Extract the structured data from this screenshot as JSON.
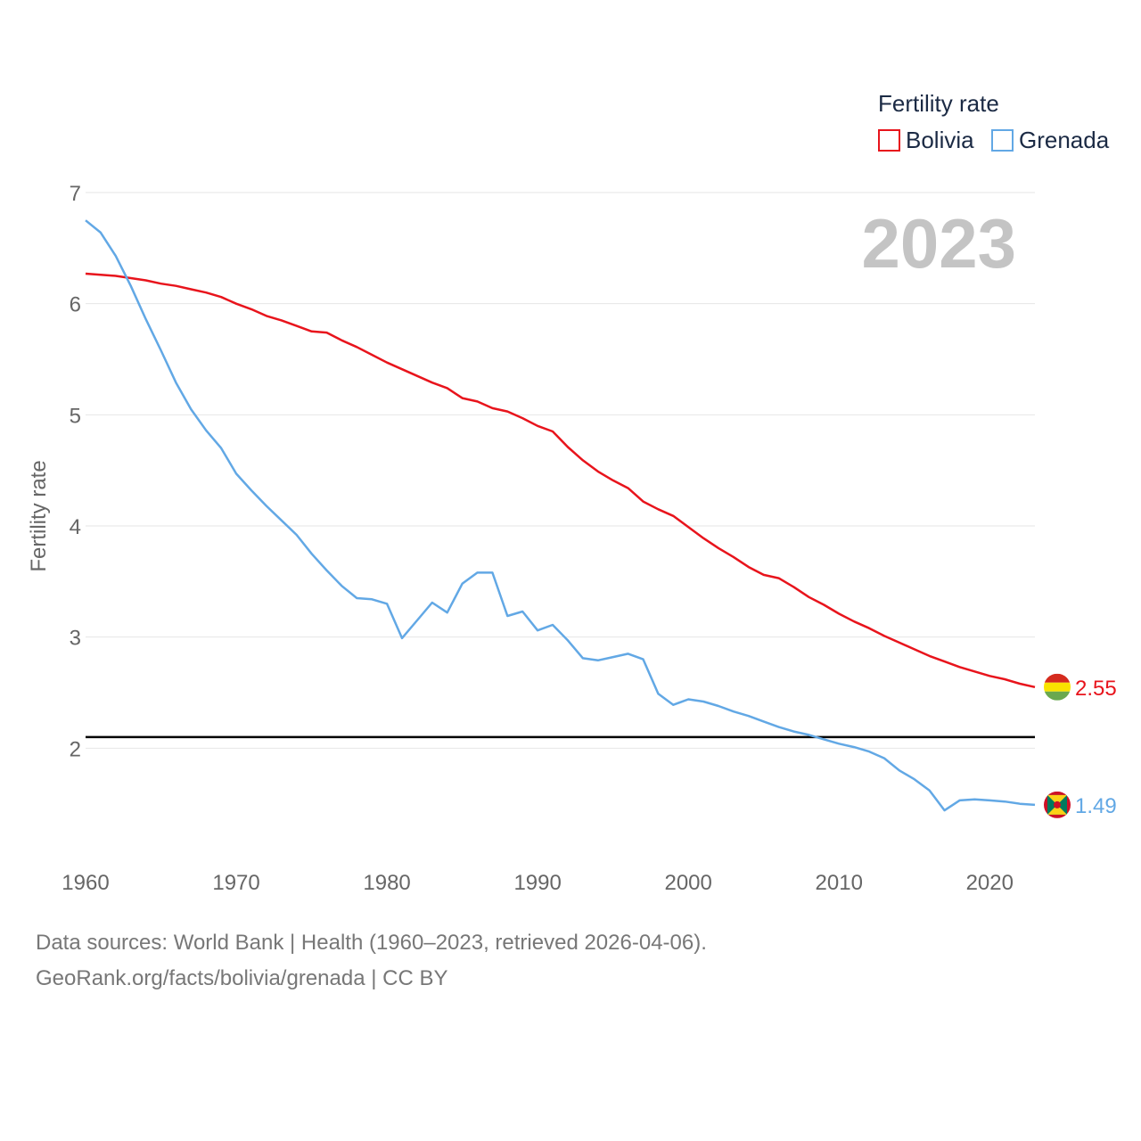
{
  "chart_data": {
    "type": "line",
    "legend_title": "Fertility rate",
    "ylabel": "Fertility rate",
    "year_label": "2023",
    "xlim": [
      1960,
      2023
    ],
    "ylim": [
      1.0,
      7.0
    ],
    "x_ticks": [
      1960,
      1970,
      1980,
      1990,
      2000,
      2010,
      2020
    ],
    "y_ticks": [
      2,
      3,
      4,
      5,
      6,
      7
    ],
    "grid": true,
    "legend_position": "top-right",
    "reference_line": {
      "y": 2.1,
      "color": "#000000"
    },
    "x": [
      1960,
      1961,
      1962,
      1963,
      1964,
      1965,
      1966,
      1967,
      1968,
      1969,
      1970,
      1971,
      1972,
      1973,
      1974,
      1975,
      1976,
      1977,
      1978,
      1979,
      1980,
      1981,
      1982,
      1983,
      1984,
      1985,
      1986,
      1987,
      1988,
      1989,
      1990,
      1991,
      1992,
      1993,
      1994,
      1995,
      1996,
      1997,
      1998,
      1999,
      2000,
      2001,
      2002,
      2003,
      2004,
      2005,
      2006,
      2007,
      2008,
      2009,
      2010,
      2011,
      2012,
      2013,
      2014,
      2015,
      2016,
      2017,
      2018,
      2019,
      2020,
      2021,
      2022,
      2023
    ],
    "series": [
      {
        "name": "Bolivia",
        "color": "#e8141c",
        "end_label": "2.55",
        "flag": "bolivia-flag",
        "values": [
          6.27,
          6.26,
          6.25,
          6.23,
          6.21,
          6.18,
          6.16,
          6.13,
          6.1,
          6.06,
          6.0,
          5.95,
          5.89,
          5.85,
          5.8,
          5.75,
          5.74,
          5.67,
          5.61,
          5.54,
          5.47,
          5.41,
          5.35,
          5.29,
          5.24,
          5.15,
          5.12,
          5.06,
          5.03,
          4.97,
          4.9,
          4.85,
          4.71,
          4.59,
          4.49,
          4.41,
          4.34,
          4.22,
          4.15,
          4.09,
          3.99,
          3.89,
          3.8,
          3.72,
          3.63,
          3.56,
          3.53,
          3.45,
          3.36,
          3.29,
          3.21,
          3.14,
          3.08,
          3.01,
          2.95,
          2.89,
          2.83,
          2.78,
          2.73,
          2.69,
          2.65,
          2.62,
          2.58,
          2.55
        ]
      },
      {
        "name": "Grenada",
        "color": "#62a8e5",
        "end_label": "1.49",
        "flag": "grenada-flag",
        "values": [
          6.75,
          6.64,
          6.43,
          6.16,
          5.86,
          5.58,
          5.29,
          5.05,
          4.86,
          4.7,
          4.47,
          4.32,
          4.18,
          4.05,
          3.92,
          3.75,
          3.6,
          3.46,
          3.35,
          3.34,
          3.3,
          2.99,
          3.15,
          3.31,
          3.22,
          3.48,
          3.58,
          3.58,
          3.19,
          3.23,
          3.06,
          3.11,
          2.97,
          2.81,
          2.79,
          2.82,
          2.85,
          2.8,
          2.49,
          2.39,
          2.44,
          2.42,
          2.38,
          2.33,
          2.29,
          2.24,
          2.19,
          2.15,
          2.12,
          2.08,
          2.04,
          2.01,
          1.97,
          1.91,
          1.8,
          1.72,
          1.62,
          1.44,
          1.53,
          1.54,
          1.53,
          1.52,
          1.5,
          1.49
        ]
      }
    ]
  },
  "footer": {
    "sources": "Data sources: World Bank | Health (1960–2023, retrieved 2026-04-06).",
    "attribution": "GeoRank.org/facts/bolivia/grenada | CC BY"
  }
}
